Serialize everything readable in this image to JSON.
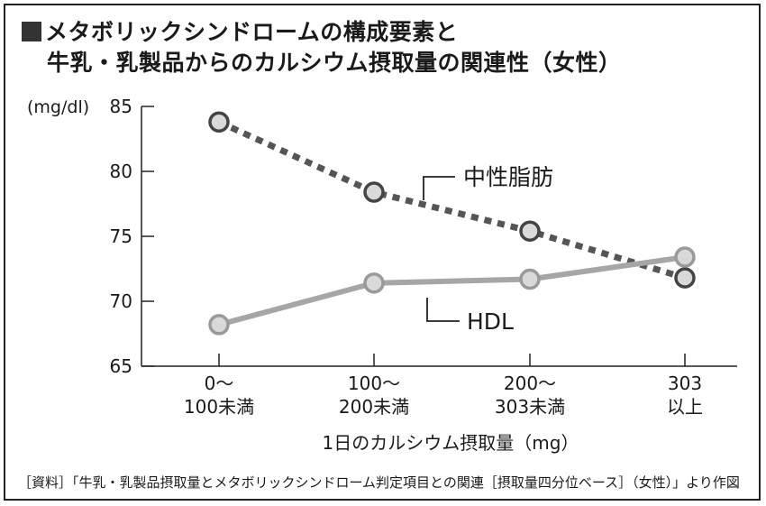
{
  "title_line1": "メタボリックシンドロームの構成要素と",
  "title_line2": "牛乳・乳製品からのカルシウム摂取量の関連性（女性）",
  "source": "［資料］「牛乳・乳製品摂取量とメタボリックシンドローム判定項目との関連［摂取量四分位ベース］（女性）」より作図",
  "chart_data": {
    "type": "line",
    "ylabel": "(mg/dl)",
    "xlabel": "1日のカルシウム摂取量（mg）",
    "ylim": [
      65,
      85
    ],
    "yticks": [
      65,
      70,
      75,
      80,
      85
    ],
    "categories": [
      [
        "0〜",
        "100未満"
      ],
      [
        "100〜",
        "200未満"
      ],
      [
        "200〜",
        "303未満"
      ],
      [
        "303",
        "以上"
      ]
    ],
    "series": [
      {
        "name": "中性脂肪",
        "values": [
          83.8,
          78.4,
          75.4,
          71.8
        ],
        "style": "dotted",
        "color": "#555555"
      },
      {
        "name": "HDL",
        "values": [
          68.2,
          71.4,
          71.7,
          73.4
        ],
        "style": "solid",
        "color": "#a6a6a6"
      }
    ],
    "grid": false
  }
}
